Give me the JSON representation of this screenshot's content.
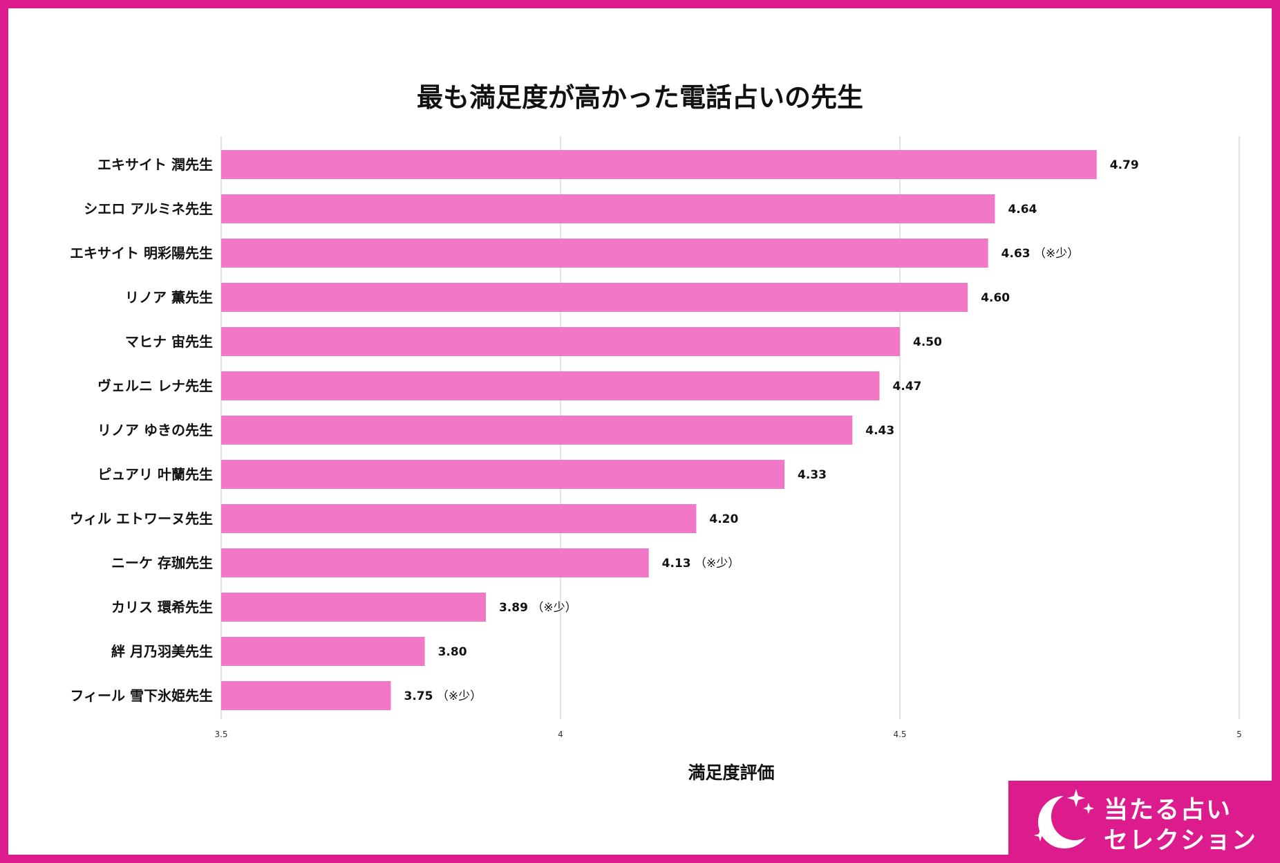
{
  "colors": {
    "frame": "#dc1b8d",
    "bar": "#f277c6",
    "grid": "#d9d9d9",
    "text": "#111111",
    "logo_bg": "#dc1b8d",
    "logo_text": "#ffffff"
  },
  "chart_data": {
    "type": "bar",
    "orientation": "horizontal",
    "title": "最も満足度が高かった電話占いの先生",
    "xlabel": "満足度評価",
    "ylabel": "",
    "xlim": [
      3.5,
      5
    ],
    "xticks": [
      "3.5",
      "4",
      "4.5",
      "5"
    ],
    "grid": true,
    "categories": [
      "エキサイト 潤先生",
      "シエロ アルミネ先生",
      "エキサイト 明彩陽先生",
      "リノア 薫先生",
      "マヒナ 宙先生",
      "ヴェルニ レナ先生",
      "リノア ゆきの先生",
      "ピュアリ 叶蘭先生",
      "ウィル エトワーヌ先生",
      "ニーケ 存珈先生",
      "カリス 環希先生",
      "絆 月乃羽美先生",
      "フィール 雪下氷姫先生"
    ],
    "values": [
      4.79,
      4.64,
      4.63,
      4.6,
      4.5,
      4.47,
      4.43,
      4.33,
      4.2,
      4.13,
      3.89,
      3.8,
      3.75
    ],
    "value_labels": [
      "4.79",
      "4.64",
      "4.63",
      "4.60",
      "4.50",
      "4.47",
      "4.43",
      "4.33",
      "4.20",
      "4.13",
      "3.89",
      "3.80",
      "3.75"
    ],
    "notes": [
      "",
      "",
      "（※少）",
      "",
      "",
      "",
      "",
      "",
      "",
      "（※少）",
      "（※少）",
      "",
      "（※少）"
    ]
  },
  "logo": {
    "line1": "当たる占い",
    "line2": "セレクション",
    "icon": "crescent-moon-stars-icon"
  }
}
